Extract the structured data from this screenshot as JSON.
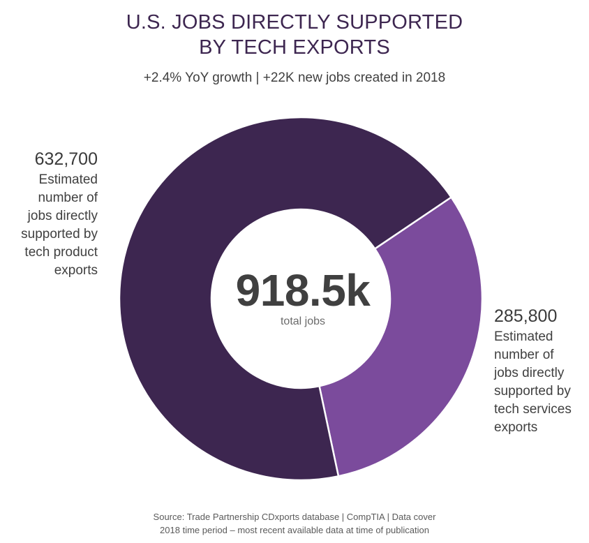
{
  "title_line1": "U.S. JOBS DIRECTLY SUPPORTED",
  "title_line2": "BY TECH EXPORTS",
  "subtitle": "+2.4% YoY growth | +22K new jobs created in 2018",
  "center": {
    "total": "918.5k",
    "caption": "total jobs"
  },
  "left_label": {
    "value": "632,700",
    "lines": [
      "Estimated",
      "number of",
      "jobs directly",
      "supported by",
      "tech product",
      "exports"
    ]
  },
  "right_label": {
    "value": "285,800",
    "lines": [
      "Estimated",
      "number of",
      "jobs directly",
      "supported by",
      "tech services",
      "exports"
    ]
  },
  "source_line1": "Source: Trade Partnership CDxports database | CompTIA | Data cover",
  "source_line2": "2018 time period – most recent available data at time of publication",
  "colors": {
    "product": "#3d2650",
    "services": "#7b4b9c",
    "separator": "#ffffff"
  },
  "chart_data": {
    "type": "pie",
    "donut": true,
    "title": "U.S. JOBS DIRECTLY SUPPORTED BY TECH EXPORTS",
    "categories": [
      "Estimated number of jobs directly supported by tech product exports",
      "Estimated number of jobs directly supported by tech services exports"
    ],
    "values": [
      632700,
      285800
    ],
    "value_labels": [
      "632,700",
      "285,800"
    ],
    "total_label": "918.5k",
    "total_caption": "total jobs"
  }
}
